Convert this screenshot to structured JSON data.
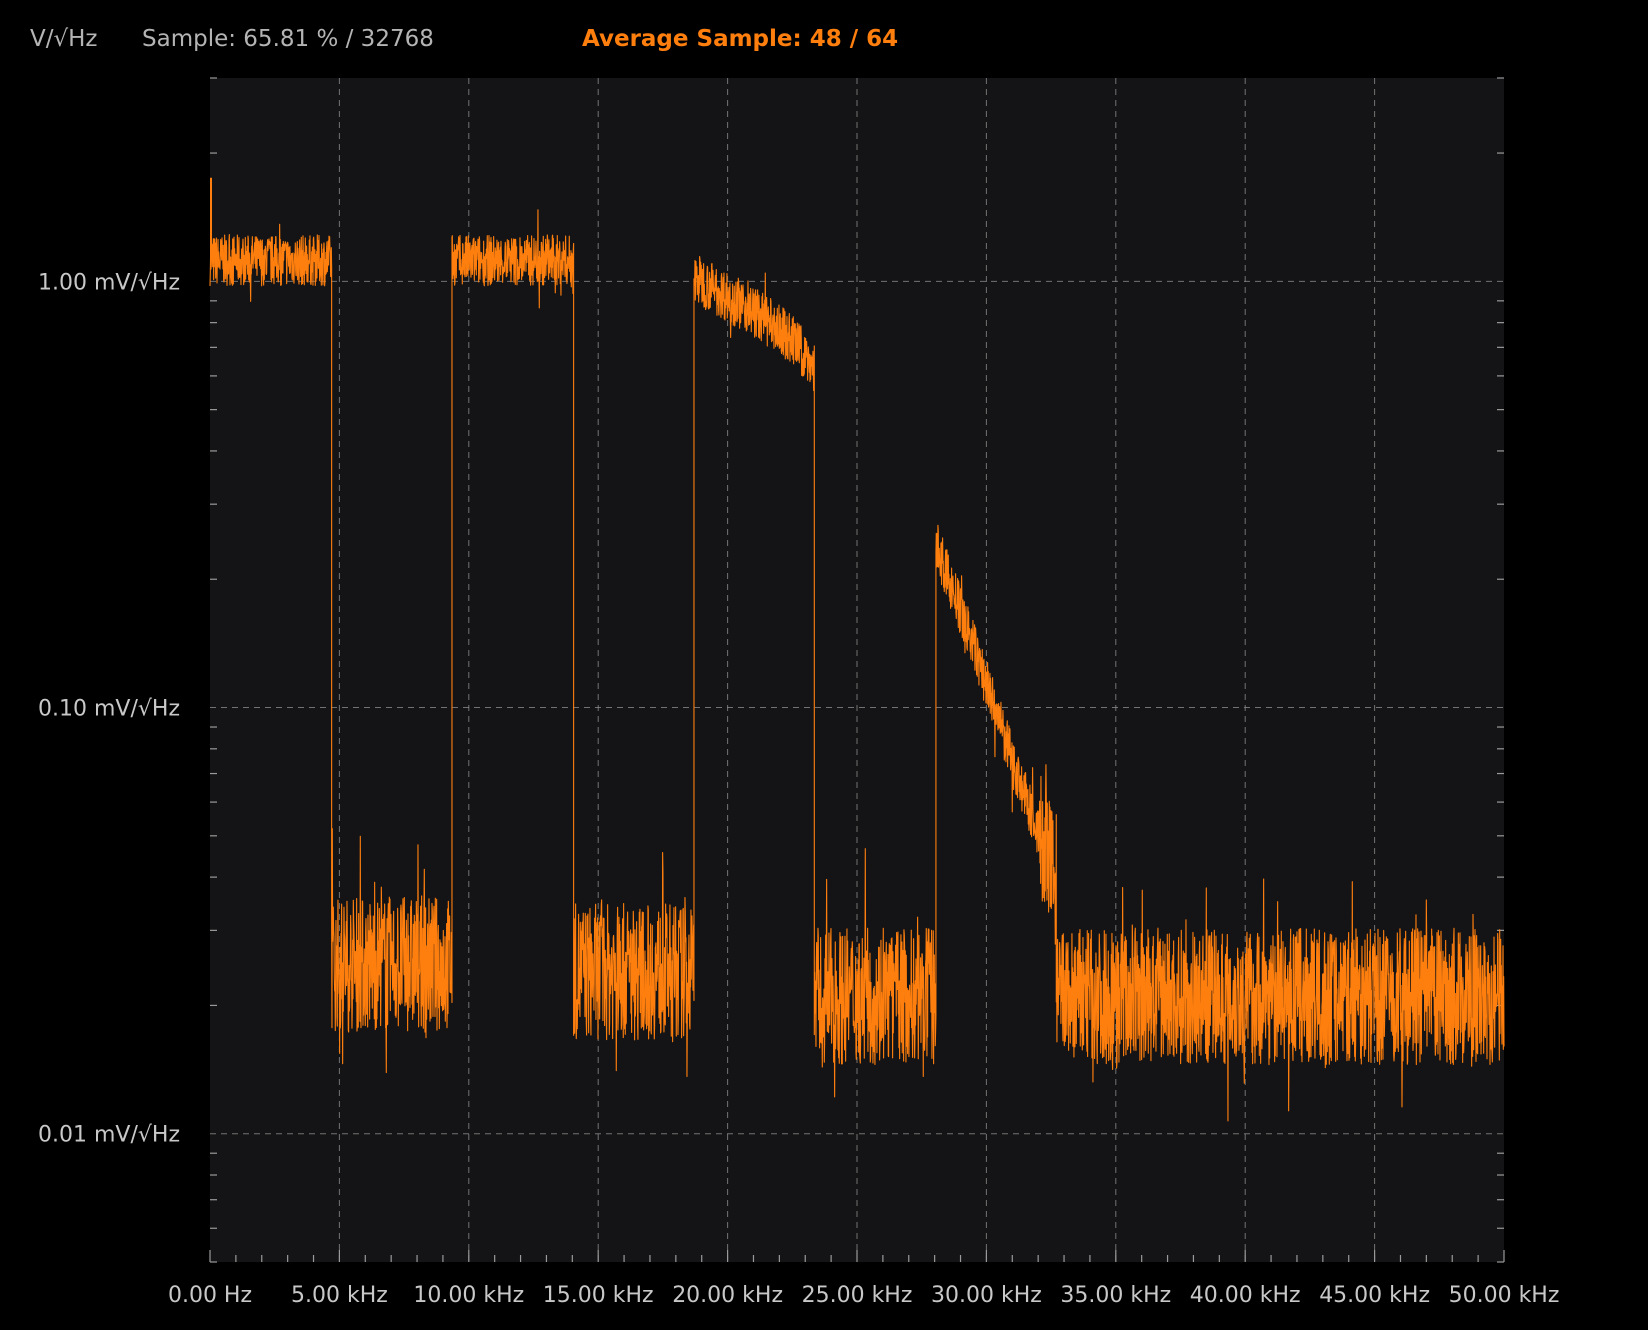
{
  "header": {
    "unit_label": "V/√Hz",
    "sample_status": "Sample: 65.81 % / 32768",
    "average_sample": "Average Sample: 48 / 64"
  },
  "colors": {
    "background": "#000000",
    "plot_background": "#141416",
    "grid": "#8a8a8a",
    "trace": "#ff7f0e",
    "text": "#c8c8c8",
    "accent": "#ff7f0e"
  },
  "chart_data": {
    "type": "line",
    "title": "",
    "xlabel": "",
    "ylabel": "V/√Hz",
    "x_scale": "linear",
    "y_scale": "log",
    "xlim": [
      0,
      50000
    ],
    "ylim": [
      0.005,
      3.0
    ],
    "grid": true,
    "x_tick_values": [
      0,
      5000,
      10000,
      15000,
      20000,
      25000,
      30000,
      35000,
      40000,
      45000,
      50000
    ],
    "x_tick_labels": [
      "0.00 Hz",
      "5.00 kHz",
      "10.00 kHz",
      "15.00 kHz",
      "20.00 kHz",
      "25.00 kHz",
      "30.00 kHz",
      "35.00 kHz",
      "40.00 kHz",
      "45.00 kHz",
      "50.00 kHz"
    ],
    "y_tick_values": [
      1.0,
      0.1,
      0.01
    ],
    "y_tick_labels": [
      "1.00 mV/√Hz",
      "0.10 mV/√Hz",
      "0.01 mV/√Hz"
    ],
    "series": [
      {
        "units": "mV/√Hz",
        "segments": [
          {
            "x": [
              0,
              4700
            ],
            "y": [
              1.12,
              1.12
            ]
          },
          {
            "x": [
              4700,
              9350
            ],
            "y": [
              0.025,
              0.025
            ]
          },
          {
            "x": [
              9350,
              14050
            ],
            "y": [
              1.12,
              1.12
            ]
          },
          {
            "x": [
              14050,
              18700
            ],
            "y": [
              0.024,
              0.024
            ]
          },
          {
            "x": [
              18700,
              19500,
              21000,
              22500,
              23350
            ],
            "y": [
              1.02,
              0.96,
              0.85,
              0.73,
              0.63
            ]
          },
          {
            "x": [
              23350,
              28050
            ],
            "y": [
              0.021,
              0.021
            ]
          },
          {
            "x": [
              28050,
              29500,
              31000,
              32700
            ],
            "y": [
              0.24,
              0.14,
              0.075,
              0.039
            ]
          },
          {
            "x": [
              32700,
              50000
            ],
            "y": [
              0.021,
              0.021
            ]
          }
        ]
      }
    ]
  }
}
